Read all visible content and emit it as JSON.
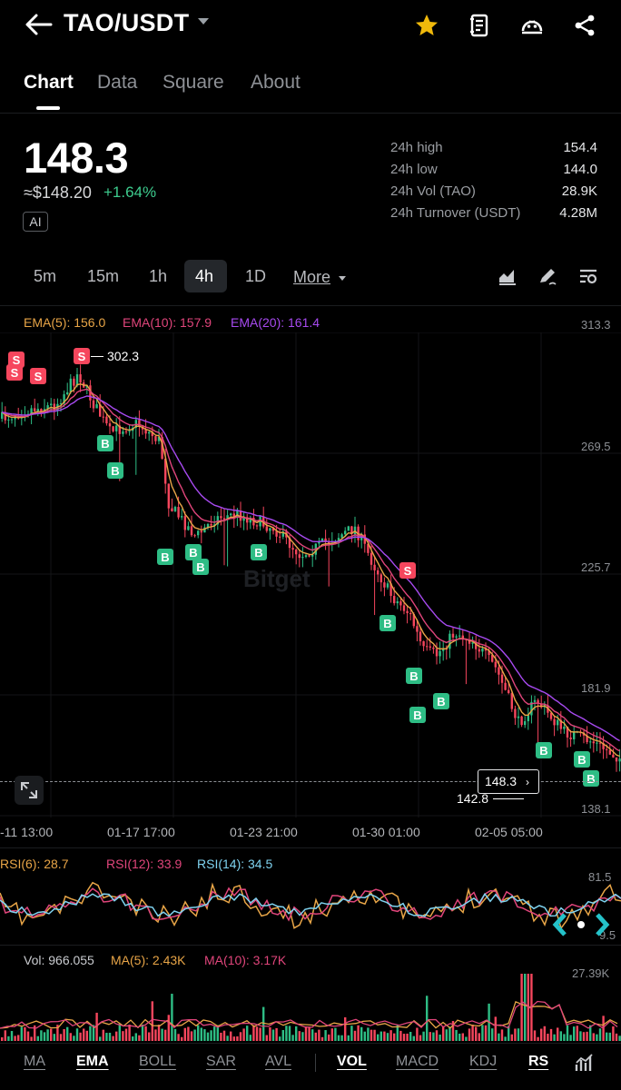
{
  "header": {
    "title": "TAO/USDT",
    "icons": [
      "back-arrow-icon",
      "star-icon",
      "book-icon",
      "smile-icon",
      "share-icon"
    ],
    "star_color": "#f0b90b"
  },
  "tabs": [
    {
      "label": "Chart",
      "active": true
    },
    {
      "label": "Data",
      "active": false
    },
    {
      "label": "Square",
      "active": false
    },
    {
      "label": "About",
      "active": false
    }
  ],
  "ticker": {
    "last_price": "148.3",
    "fiat_price": "≈$148.20",
    "change_pct": "+1.64%",
    "ai_badge": "AI",
    "stats": [
      {
        "label": "24h high",
        "value": "154.4"
      },
      {
        "label": "24h low",
        "value": "144.0"
      },
      {
        "label": "24h Vol (TAO)",
        "value": "28.9K"
      },
      {
        "label": "24h Turnover (USDT)",
        "value": "4.28M"
      }
    ]
  },
  "timeframes": {
    "items": [
      {
        "label": "5m",
        "active": false
      },
      {
        "label": "15m",
        "active": false
      },
      {
        "label": "1h",
        "active": false
      },
      {
        "label": "4h",
        "active": true
      },
      {
        "label": "1D",
        "active": false
      }
    ],
    "more_label": "More",
    "tools": [
      "chart-type-icon",
      "draw-icon",
      "settings-icon"
    ]
  },
  "main_chart": {
    "ema_labels": [
      {
        "text": "EMA(5): 156.0",
        "color": "#e8a547"
      },
      {
        "text": "EMA(10): 157.9",
        "color": "#e0457b"
      },
      {
        "text": "EMA(20): 161.4",
        "color": "#a74af0"
      }
    ],
    "y_ticks": [
      "313.3",
      "269.5",
      "225.7",
      "181.9",
      "138.1"
    ],
    "x_ticks": [
      "-11 13:00",
      "01-17 17:00",
      "01-23 21:00",
      "01-30 01:00",
      "02-05 05:00"
    ],
    "high_marker": "302.3",
    "low_marker": "142.8",
    "current_price_tag": "148.3",
    "watermark": "Bitget",
    "up_color": "#2ebd85",
    "down_color": "#f6465d"
  },
  "rsi_panel": {
    "labels": [
      {
        "text": "RSI(6): 28.7",
        "color": "#e8a547"
      },
      {
        "text": "RSI(12): 33.9",
        "color": "#e0457b"
      },
      {
        "text": "RSI(14): 34.5",
        "color": "#7fd3f0"
      }
    ],
    "top_value": "81.5",
    "bottom_value": "9.5"
  },
  "volume_panel": {
    "labels": [
      {
        "text": "Vol: 966.055",
        "color": "#c9cbcf"
      },
      {
        "text": "MA(5): 2.43K",
        "color": "#e8a547"
      },
      {
        "text": "MA(10): 3.17K",
        "color": "#e0457b"
      }
    ],
    "top_value": "27.39K"
  },
  "bottom_bar": {
    "main_indicators": [
      {
        "label": "MA",
        "style": "ul"
      },
      {
        "label": "EMA",
        "style": "sel"
      },
      {
        "label": "BOLL",
        "style": "ul"
      },
      {
        "label": "SAR",
        "style": "ul"
      },
      {
        "label": "AVL",
        "style": "ul"
      }
    ],
    "sub_indicators": [
      {
        "label": "VOL",
        "style": "sel"
      },
      {
        "label": "MACD",
        "style": "ul"
      },
      {
        "label": "KDJ",
        "style": "ul"
      },
      {
        "label": "RS",
        "style": "sel"
      }
    ]
  }
}
